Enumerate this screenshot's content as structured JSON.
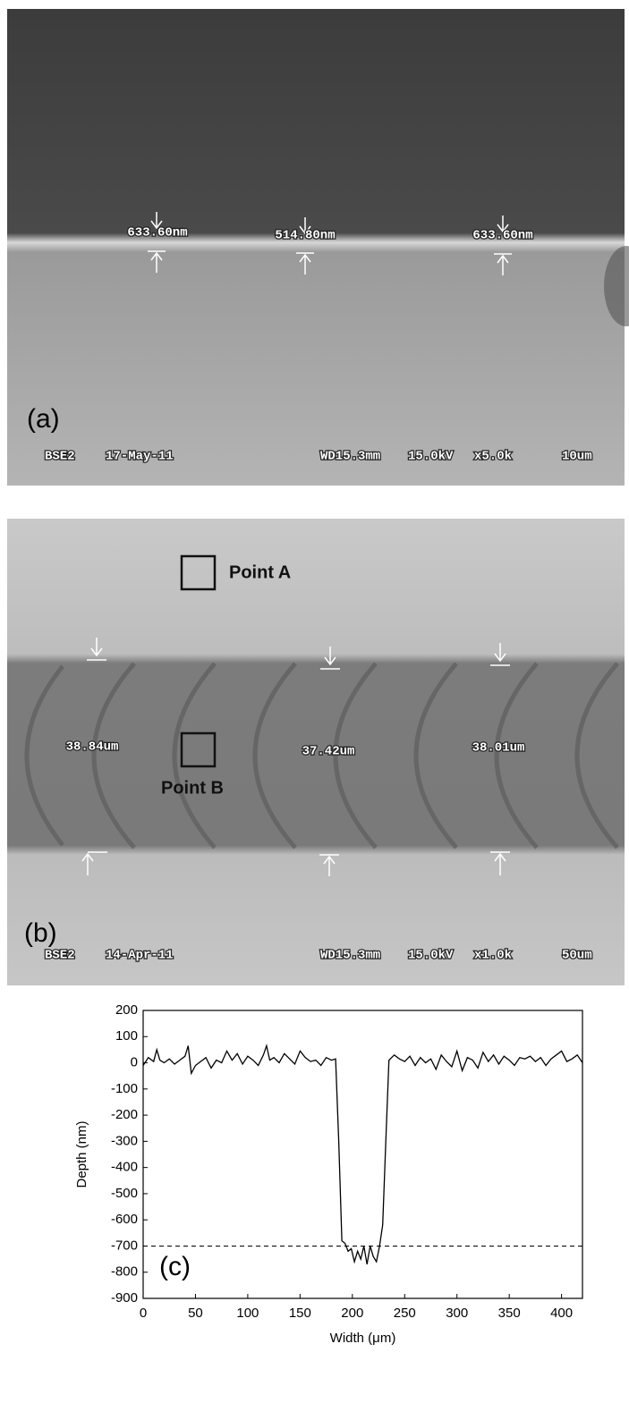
{
  "panel_a": {
    "label": "(a)",
    "measurements": [
      "633.60nm",
      "514.80nm",
      "633.60nm"
    ],
    "info": [
      "BSE2",
      "17-May-11",
      "WD15.3mm",
      "15.0kV",
      "x5.0k",
      "10um"
    ]
  },
  "panel_b": {
    "label": "(b)",
    "points": [
      "Point A",
      "Point B"
    ],
    "measurements": [
      "38.84um",
      "37.42um",
      "38.01um"
    ],
    "info": [
      "BSE2",
      "14-Apr-11",
      "WD15.3mm",
      "15.0kV",
      "x1.0k",
      "50um"
    ]
  },
  "chart_data": {
    "type": "line",
    "annotation": "(c)",
    "xlabel": "Width (μm)",
    "ylabel": "Depth (nm)",
    "x": [
      0,
      5,
      10,
      13,
      16,
      20,
      25,
      30,
      35,
      40,
      43,
      46,
      50,
      55,
      60,
      65,
      70,
      75,
      80,
      85,
      90,
      95,
      100,
      105,
      110,
      115,
      118,
      121,
      125,
      130,
      135,
      140,
      145,
      150,
      155,
      160,
      165,
      170,
      175,
      180,
      184,
      187,
      190,
      193,
      196,
      199,
      202,
      205,
      208,
      211,
      214,
      217,
      220,
      223,
      226,
      229,
      232,
      235,
      240,
      245,
      250,
      255,
      260,
      265,
      270,
      275,
      280,
      285,
      290,
      295,
      300,
      305,
      310,
      315,
      320,
      325,
      330,
      335,
      340,
      345,
      350,
      355,
      360,
      365,
      370,
      375,
      380,
      385,
      390,
      395,
      400,
      405,
      410,
      415,
      420
    ],
    "values": [
      -10,
      20,
      5,
      50,
      10,
      0,
      15,
      -5,
      10,
      25,
      65,
      -40,
      -10,
      5,
      20,
      -20,
      10,
      0,
      45,
      10,
      35,
      -5,
      25,
      10,
      -10,
      30,
      65,
      10,
      20,
      0,
      35,
      15,
      -5,
      45,
      20,
      5,
      10,
      -10,
      20,
      10,
      15,
      -300,
      -680,
      -690,
      -720,
      -710,
      -760,
      -720,
      -750,
      -700,
      -770,
      -700,
      -740,
      -760,
      -700,
      -620,
      -300,
      10,
      30,
      15,
      5,
      25,
      -10,
      20,
      0,
      15,
      -25,
      30,
      5,
      -15,
      45,
      -30,
      20,
      10,
      -20,
      40,
      5,
      30,
      -5,
      25,
      10,
      -10,
      20,
      15,
      25,
      5,
      20,
      -10,
      15,
      30,
      45,
      5,
      15,
      30,
      0
    ],
    "color": "#000000",
    "reference_line": -700,
    "xlim": [
      0,
      420
    ],
    "xticks": [
      0,
      50,
      100,
      150,
      200,
      250,
      300,
      350,
      400
    ],
    "ylim": [
      -900,
      200
    ],
    "yticks": [
      -900,
      -800,
      -700,
      -600,
      -500,
      -400,
      -300,
      -200,
      -100,
      0,
      100,
      200
    ]
  }
}
